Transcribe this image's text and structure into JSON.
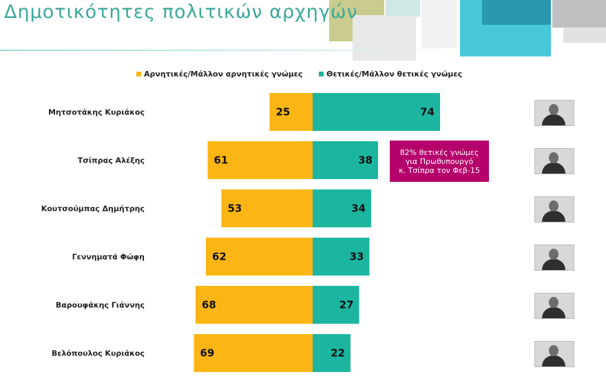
{
  "title": "Δημοτικότητες πολιτικών αρχηγών",
  "legend": {
    "negative": "Αρνητικές/Μάλλον αρνητικές γνώμες",
    "positive": "Θετικές/Μάλλον θετικές γνώμες"
  },
  "colors": {
    "negative": "#fbb614",
    "positive": "#1cb6a0",
    "callout": "#b5006b",
    "title": "#3aa89a"
  },
  "callout": {
    "line1": "82% θετικές γνώμες",
    "line2": "για Πρωθυπουργό",
    "line3": "κ. Τσίπρα τον Φεβ-15"
  },
  "chart_data": {
    "type": "bar",
    "orientation": "horizontal-diverging",
    "categories": [
      "Μητσοτάκης Κυριάκος",
      "Τσίπρας Αλέξης",
      "Κουτσούμπας Δημήτρης",
      "Γεννηματά Φώφη",
      "Βαρουφάκης Γιάννης",
      "Βελόπουλος Κυριάκος"
    ],
    "series": [
      {
        "name": "Αρνητικές/Μάλλον αρνητικές γνώμες",
        "values": [
          25,
          61,
          53,
          62,
          68,
          69
        ]
      },
      {
        "name": "Θετικές/Μάλλον θετικές γνώμες",
        "values": [
          74,
          38,
          34,
          33,
          27,
          22
        ]
      }
    ],
    "legend_position": "top",
    "grid": false
  },
  "photos": [
    "person-photo-icon",
    "person-photo-icon",
    "person-photo-icon",
    "person-photo-icon",
    "person-photo-icon",
    "person-photo-icon"
  ]
}
